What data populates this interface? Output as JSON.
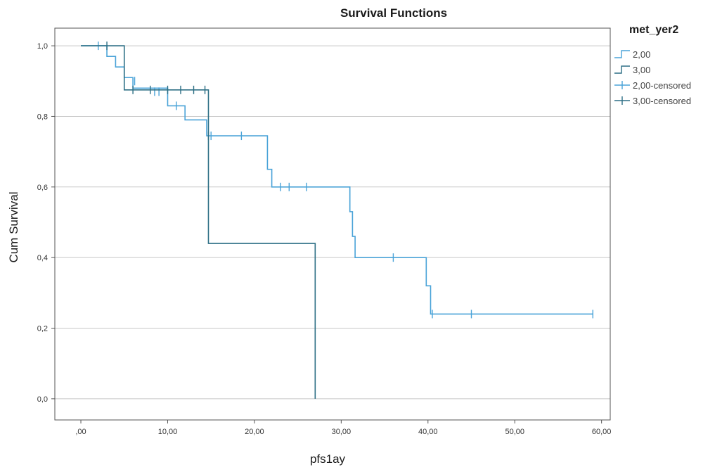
{
  "chart_data": {
    "type": "line",
    "title": "Survival Functions",
    "xlabel": "pfs1ay",
    "ylabel": "Cum Survival",
    "xlim": [
      -3,
      61
    ],
    "ylim": [
      -0.06,
      1.05
    ],
    "x_ticks": [
      {
        "value": 0,
        "label": ",00"
      },
      {
        "value": 10,
        "label": "10,00"
      },
      {
        "value": 20,
        "label": "20,00"
      },
      {
        "value": 30,
        "label": "30,00"
      },
      {
        "value": 40,
        "label": "40,00"
      },
      {
        "value": 50,
        "label": "50,00"
      },
      {
        "value": 60,
        "label": "60,00"
      }
    ],
    "y_ticks": [
      {
        "value": 0.0,
        "label": "0,0"
      },
      {
        "value": 0.2,
        "label": "0,2"
      },
      {
        "value": 0.4,
        "label": "0,4"
      },
      {
        "value": 0.6,
        "label": "0,6"
      },
      {
        "value": 0.8,
        "label": "0,8"
      },
      {
        "value": 1.0,
        "label": "1,0"
      }
    ],
    "grid": "horizontal",
    "legend": {
      "title": "met_yer2",
      "position": "top-right",
      "entries": [
        "2,00",
        "3,00",
        "2,00-censored",
        "3,00-censored"
      ]
    },
    "series": [
      {
        "name": "2,00",
        "color": "#4aa3d8",
        "steps": [
          [
            0,
            1.0
          ],
          [
            3,
            0.97
          ],
          [
            4,
            0.94
          ],
          [
            5,
            0.91
          ],
          [
            6,
            0.88
          ],
          [
            10,
            0.83
          ],
          [
            12,
            0.79
          ],
          [
            14.5,
            0.745
          ],
          [
            21.5,
            0.65
          ],
          [
            22,
            0.6
          ],
          [
            31,
            0.53
          ],
          [
            31.3,
            0.46
          ],
          [
            31.6,
            0.4
          ],
          [
            39.8,
            0.32
          ],
          [
            40.3,
            0.24
          ],
          [
            59,
            0.24
          ]
        ],
        "censored": [
          [
            2,
            1.0
          ],
          [
            6.2,
            0.9
          ],
          [
            8.5,
            0.87
          ],
          [
            9,
            0.87
          ],
          [
            11,
            0.83
          ],
          [
            15,
            0.745
          ],
          [
            18.5,
            0.745
          ],
          [
            23,
            0.6
          ],
          [
            24,
            0.6
          ],
          [
            26,
            0.6
          ],
          [
            36,
            0.4
          ],
          [
            40.5,
            0.24
          ],
          [
            45,
            0.24
          ],
          [
            59,
            0.24
          ]
        ]
      },
      {
        "name": "3,00",
        "color": "#2d6f85",
        "steps": [
          [
            0,
            1.0
          ],
          [
            5,
            0.875
          ],
          [
            14.7,
            0.44
          ],
          [
            27,
            0.0
          ]
        ],
        "censored": [
          [
            3,
            1.0
          ],
          [
            5,
            0.94
          ],
          [
            6,
            0.875
          ],
          [
            8,
            0.875
          ],
          [
            10,
            0.875
          ],
          [
            11.5,
            0.875
          ],
          [
            13,
            0.875
          ],
          [
            14.3,
            0.875
          ],
          [
            14.7,
            0.745
          ]
        ]
      }
    ]
  }
}
